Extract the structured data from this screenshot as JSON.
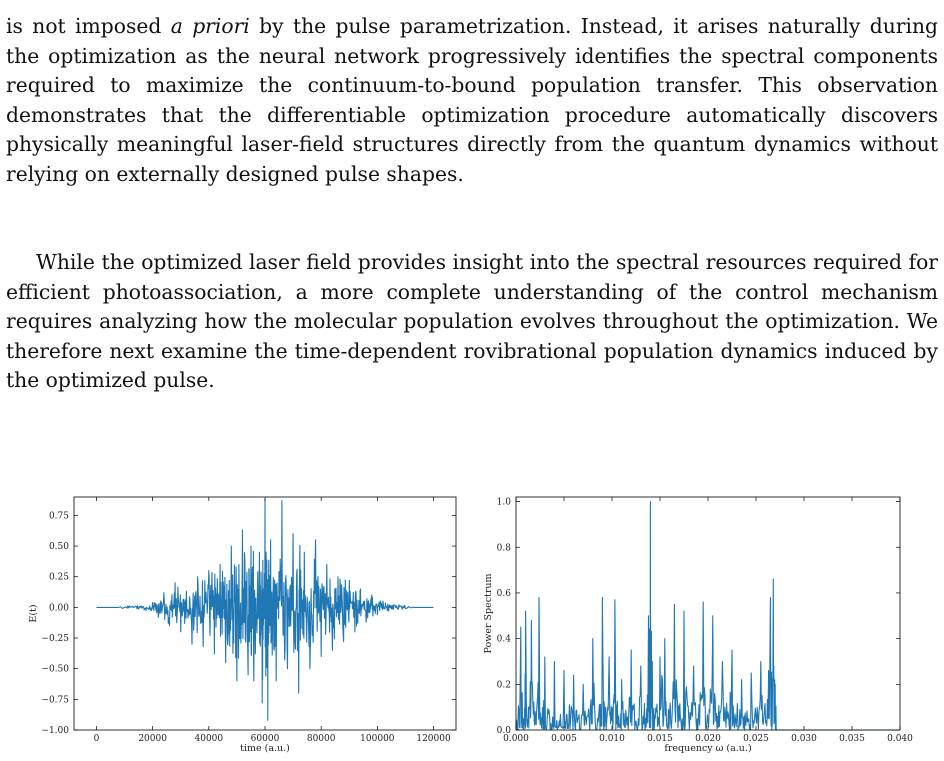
{
  "paper": {
    "paragraph1": {
      "pre": "is not imposed ",
      "italic": "a priori",
      "post": " by the pulse parametrization. Instead, it arises naturally during the optimization as the neural network progressively identifies the spectral components required to maximize the continuum-to-bound population transfer.  This observation demonstrates that the differentiable optimization procedure automatically discovers physically meaningful laser-field structures directly from the quantum dynamics without relying on externally designed pulse shapes."
    },
    "paragraph2": "While the optimized laser field provides insight into the spectral resources required for efficient photoassociation, a more complete understanding of the control mechanism requires analyzing how the molecular population evolves throughout the optimization.  We therefore next examine the time-dependent rovibrational population dynamics induced by the optimized pulse."
  },
  "colors": {
    "line": "#1f77b4",
    "axis": "#000000"
  },
  "chart_data": [
    {
      "type": "line",
      "title": "",
      "xlabel": "time (a.u.)",
      "ylabel": "E(t)",
      "xlim": [
        -8000,
        128000
      ],
      "ylim": [
        -1.0,
        0.9
      ],
      "xticks": [
        0,
        20000,
        40000,
        60000,
        80000,
        100000,
        120000
      ],
      "xtick_labels": [
        "0",
        "20000",
        "40000",
        "60000",
        "80000",
        "100000",
        "120000"
      ],
      "yticks": [
        0.75,
        0.5,
        0.25,
        0.0,
        -0.25,
        -0.5,
        -0.75,
        -1.0
      ],
      "ytick_labels": [
        "0.75",
        "0.50",
        "0.25",
        "0.00",
        "−0.25",
        "−0.50",
        "−0.75",
        "−1.00"
      ],
      "grid": false,
      "series": [
        {
          "x": [
            0,
            10000,
            14000,
            17000,
            20000,
            22000,
            24000,
            26000,
            28000,
            30000,
            32000,
            34000,
            36000,
            38000,
            40000,
            42000,
            44000,
            46000,
            48000,
            50000,
            52000,
            54000,
            55000,
            56000,
            58000,
            59000,
            60000,
            61000,
            62000,
            64000,
            66000,
            68000,
            70000,
            72000,
            74000,
            76000,
            78000,
            80000,
            82000,
            84000,
            86000,
            88000,
            90000,
            92000,
            94000,
            96000,
            98000,
            100000,
            102000,
            104000,
            106000,
            110000,
            114000,
            120000
          ],
          "y": [
            0.0,
            0.0,
            0.01,
            -0.02,
            0.04,
            -0.08,
            0.12,
            -0.15,
            0.2,
            -0.2,
            0.13,
            -0.3,
            0.25,
            -0.32,
            0.3,
            -0.38,
            0.35,
            -0.45,
            0.5,
            -0.6,
            0.63,
            -0.55,
            0.5,
            -0.6,
            0.45,
            -0.78,
            0.88,
            -0.92,
            0.55,
            -0.6,
            0.87,
            -0.5,
            0.6,
            -0.7,
            0.45,
            -0.5,
            0.55,
            -0.4,
            0.35,
            -0.35,
            0.25,
            -0.28,
            0.22,
            -0.2,
            0.15,
            -0.12,
            0.1,
            -0.06,
            0.05,
            -0.03,
            0.02,
            -0.01,
            0.0,
            0.0
          ]
        }
      ]
    },
    {
      "type": "line",
      "title": "",
      "xlabel": "frequency ω (a.u.)",
      "ylabel": "Power Spectrum",
      "xlim": [
        0.0,
        0.04
      ],
      "ylim": [
        0.0,
        1.02
      ],
      "xticks": [
        0.0,
        0.005,
        0.01,
        0.015,
        0.02,
        0.025,
        0.03,
        0.035,
        0.04
      ],
      "xtick_labels": [
        "0.000",
        "0.005",
        "0.010",
        "0.015",
        "0.020",
        "0.025",
        "0.030",
        "0.035",
        "0.040"
      ],
      "yticks": [
        0.0,
        0.2,
        0.4,
        0.6,
        0.8,
        1.0
      ],
      "ytick_labels": [
        "0.0",
        "0.2",
        "0.4",
        "0.6",
        "0.8",
        "1.0"
      ],
      "grid": false,
      "series": [
        {
          "x": [
            0.0,
            0.0005,
            0.0008,
            0.001,
            0.0013,
            0.0016,
            0.002,
            0.0024,
            0.0027,
            0.003,
            0.0035,
            0.004,
            0.0045,
            0.005,
            0.0055,
            0.006,
            0.0065,
            0.007,
            0.0075,
            0.008,
            0.0085,
            0.009,
            0.0093,
            0.0097,
            0.01,
            0.0103,
            0.0107,
            0.011,
            0.0115,
            0.012,
            0.0125,
            0.013,
            0.0135,
            0.0138,
            0.014,
            0.0142,
            0.0145,
            0.015,
            0.0155,
            0.016,
            0.0165,
            0.017,
            0.0175,
            0.018,
            0.0185,
            0.019,
            0.0195,
            0.02,
            0.0205,
            0.021,
            0.0215,
            0.022,
            0.0225,
            0.023,
            0.0235,
            0.024,
            0.0245,
            0.025,
            0.0255,
            0.026,
            0.0265,
            0.0268,
            0.027,
            0.0272,
            0.03,
            0.035,
            0.04
          ],
          "y": [
            0.02,
            0.45,
            0.05,
            0.52,
            0.1,
            0.48,
            0.08,
            0.58,
            0.05,
            0.32,
            0.06,
            0.3,
            0.04,
            0.26,
            0.03,
            0.24,
            0.05,
            0.2,
            0.06,
            0.4,
            0.05,
            0.58,
            0.1,
            0.32,
            0.04,
            0.57,
            0.06,
            0.22,
            0.05,
            0.35,
            0.04,
            0.28,
            0.05,
            0.5,
            1.0,
            0.3,
            0.05,
            0.32,
            0.4,
            0.08,
            0.55,
            0.04,
            0.52,
            0.05,
            0.28,
            0.05,
            0.56,
            0.04,
            0.5,
            0.06,
            0.3,
            0.05,
            0.35,
            0.06,
            0.22,
            0.04,
            0.25,
            0.05,
            0.3,
            0.03,
            0.58,
            0.66,
            0.2,
            0.0,
            0.0,
            0.0,
            0.0
          ]
        }
      ]
    }
  ]
}
